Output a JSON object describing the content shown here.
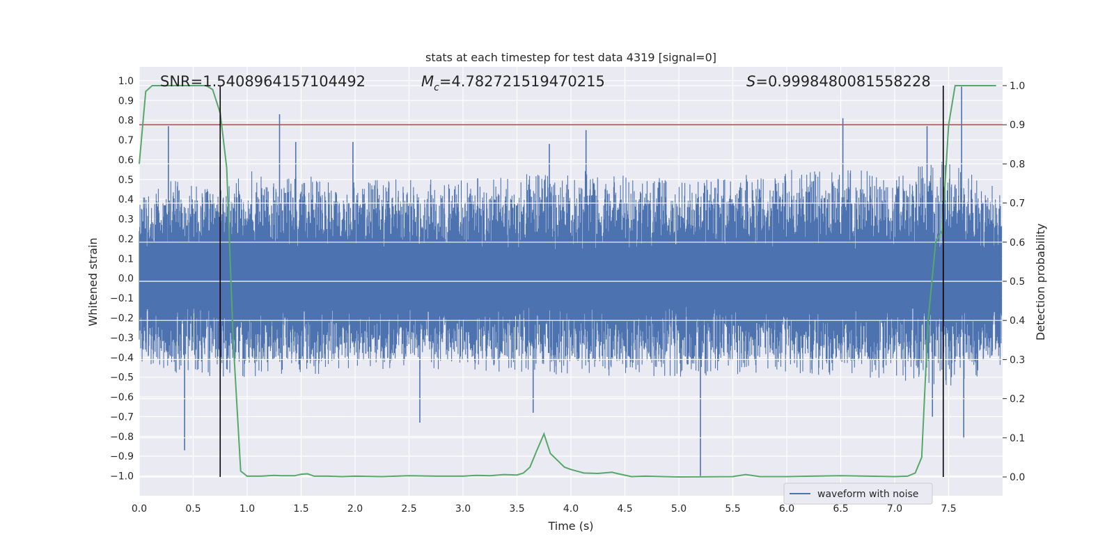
{
  "chart_data": {
    "type": "line",
    "title": "stats at each timestep for test data 4319 [signal=0]",
    "xlabel": "Time (s)",
    "ylabel": "Whitened strain",
    "y2label": "Detection probability",
    "xlim": [
      0.0,
      8.0
    ],
    "ylim": [
      -1.1,
      1.07
    ],
    "y2lim": [
      -0.048,
      1.048
    ],
    "x_ticks": [
      0.0,
      0.5,
      1.0,
      1.5,
      2.0,
      2.5,
      3.0,
      3.5,
      4.0,
      4.5,
      5.0,
      5.5,
      6.0,
      6.5,
      7.0,
      7.5
    ],
    "x_tick_labels": [
      "0.0",
      "0.5",
      "1.0",
      "1.5",
      "2.0",
      "2.5",
      "3.0",
      "3.5",
      "4.0",
      "4.5",
      "5.0",
      "5.5",
      "6.0",
      "6.5",
      "7.0",
      "7.5"
    ],
    "y_ticks": [
      1.0,
      0.9,
      0.8,
      0.7,
      0.6,
      0.5,
      0.4,
      0.3,
      0.2,
      0.1,
      0.0,
      -0.1,
      -0.2,
      -0.3,
      -0.4,
      -0.5,
      -0.6,
      -0.7,
      -0.8,
      -0.9,
      -1.0
    ],
    "y_tick_labels": [
      "1.0",
      "0.9",
      "0.8",
      "0.7",
      "0.6",
      "0.5",
      "0.4",
      "0.3",
      "0.2",
      "0.1",
      "0.0",
      "−0.1",
      "−0.2",
      "−0.3",
      "−0.4",
      "−0.5",
      "−0.6",
      "−0.7",
      "−0.8",
      "−0.9",
      "−1.0"
    ],
    "y2_ticks": [
      1.0,
      0.9,
      0.8,
      0.7,
      0.6,
      0.5,
      0.4,
      0.3,
      0.2,
      0.1,
      0.0
    ],
    "y2_tick_labels": [
      "1.0",
      "0.9",
      "0.8",
      "0.7",
      "0.6",
      "0.5",
      "0.4",
      "0.3",
      "0.2",
      "0.1",
      "0.0"
    ],
    "annotations": {
      "snr": "SNR=1.5408964157104492",
      "mc_symbol": "M",
      "mc_subscript": "c",
      "mc_value": "=4.782721519470215",
      "s_symbol": "S",
      "s_value": "=0.9998480081558228"
    },
    "threshold_line": {
      "y2": 0.9,
      "color": "#c44e52"
    },
    "vertical_lines": [
      0.75,
      7.45
    ],
    "legend": {
      "label": "waveform with noise",
      "placement": "lower-right"
    },
    "colors": {
      "background": "#eaeaf2",
      "grid": "#ffffff",
      "waveform": "#4c72b0",
      "probability": "#55a868",
      "threshold": "#c44e52",
      "vline": "#000000"
    },
    "waveform": {
      "description_series": "waveform with noise",
      "envelope_points": [
        {
          "x": 0.0,
          "max": 0.4,
          "min": -0.42
        },
        {
          "x": 0.3,
          "max": 0.5,
          "min": -0.48
        },
        {
          "x": 0.7,
          "max": 0.45,
          "min": -0.5
        },
        {
          "x": 1.0,
          "max": 0.55,
          "min": -0.5
        },
        {
          "x": 2.0,
          "max": 0.5,
          "min": -0.48
        },
        {
          "x": 3.0,
          "max": 0.5,
          "min": -0.46
        },
        {
          "x": 4.0,
          "max": 0.55,
          "min": -0.5
        },
        {
          "x": 5.0,
          "max": 0.5,
          "min": -0.5
        },
        {
          "x": 6.0,
          "max": 0.55,
          "min": -0.48
        },
        {
          "x": 7.0,
          "max": 0.55,
          "min": -0.52
        },
        {
          "x": 7.5,
          "max": 0.6,
          "min": -0.55
        },
        {
          "x": 8.0,
          "max": 0.45,
          "min": -0.45
        }
      ],
      "spikes": [
        {
          "x": 0.27,
          "y": 0.77
        },
        {
          "x": 0.42,
          "y": -0.87
        },
        {
          "x": 1.3,
          "y": 0.83
        },
        {
          "x": 1.45,
          "y": 0.69
        },
        {
          "x": 1.98,
          "y": 0.69
        },
        {
          "x": 2.6,
          "y": -0.73
        },
        {
          "x": 3.65,
          "y": -0.68
        },
        {
          "x": 3.8,
          "y": 0.68
        },
        {
          "x": 4.14,
          "y": 0.75
        },
        {
          "x": 5.2,
          "y": -1.0
        },
        {
          "x": 6.52,
          "y": 0.81
        },
        {
          "x": 7.35,
          "y": -0.7
        },
        {
          "x": 7.62,
          "y": 0.97
        },
        {
          "x": 7.64,
          "y": -0.81
        },
        {
          "x": 7.3,
          "y": 0.77
        }
      ]
    },
    "probability_series": {
      "name": "detection probability",
      "x": [
        0.0,
        0.06,
        0.12,
        0.25,
        0.38,
        0.5,
        0.62,
        0.68,
        0.75,
        0.81,
        0.87,
        0.94,
        1.0,
        1.12,
        1.25,
        1.31,
        1.44,
        1.5,
        1.56,
        1.62,
        1.75,
        1.88,
        2.0,
        2.25,
        2.5,
        2.75,
        3.0,
        3.12,
        3.25,
        3.38,
        3.5,
        3.56,
        3.62,
        3.68,
        3.75,
        3.81,
        3.94,
        4.0,
        4.12,
        4.25,
        4.38,
        4.44,
        4.56,
        4.69,
        5.0,
        5.5,
        5.62,
        5.75,
        6.0,
        6.5,
        6.75,
        7.0,
        7.12,
        7.19,
        7.25,
        7.31,
        7.38,
        7.44,
        7.5,
        7.56,
        7.69,
        7.8,
        7.94
      ],
      "y": [
        0.8,
        0.985,
        1.0,
        1.0,
        1.0,
        1.0,
        1.0,
        0.99,
        0.93,
        0.79,
        0.35,
        0.015,
        0.002,
        0.002,
        0.004,
        0.003,
        0.003,
        0.007,
        0.008,
        0.002,
        0.002,
        0.001,
        0.002,
        0.001,
        0.003,
        0.002,
        0.002,
        0.004,
        0.003,
        0.006,
        0.005,
        0.01,
        0.025,
        0.065,
        0.11,
        0.06,
        0.025,
        0.019,
        0.01,
        0.009,
        0.012,
        0.008,
        0.001,
        0.002,
        0.0,
        0.001,
        0.006,
        0.001,
        0.001,
        0.003,
        0.002,
        0.001,
        0.002,
        0.01,
        0.05,
        0.4,
        0.6,
        0.63,
        0.9,
        1.0,
        1.0,
        1.0,
        1.0
      ]
    }
  }
}
